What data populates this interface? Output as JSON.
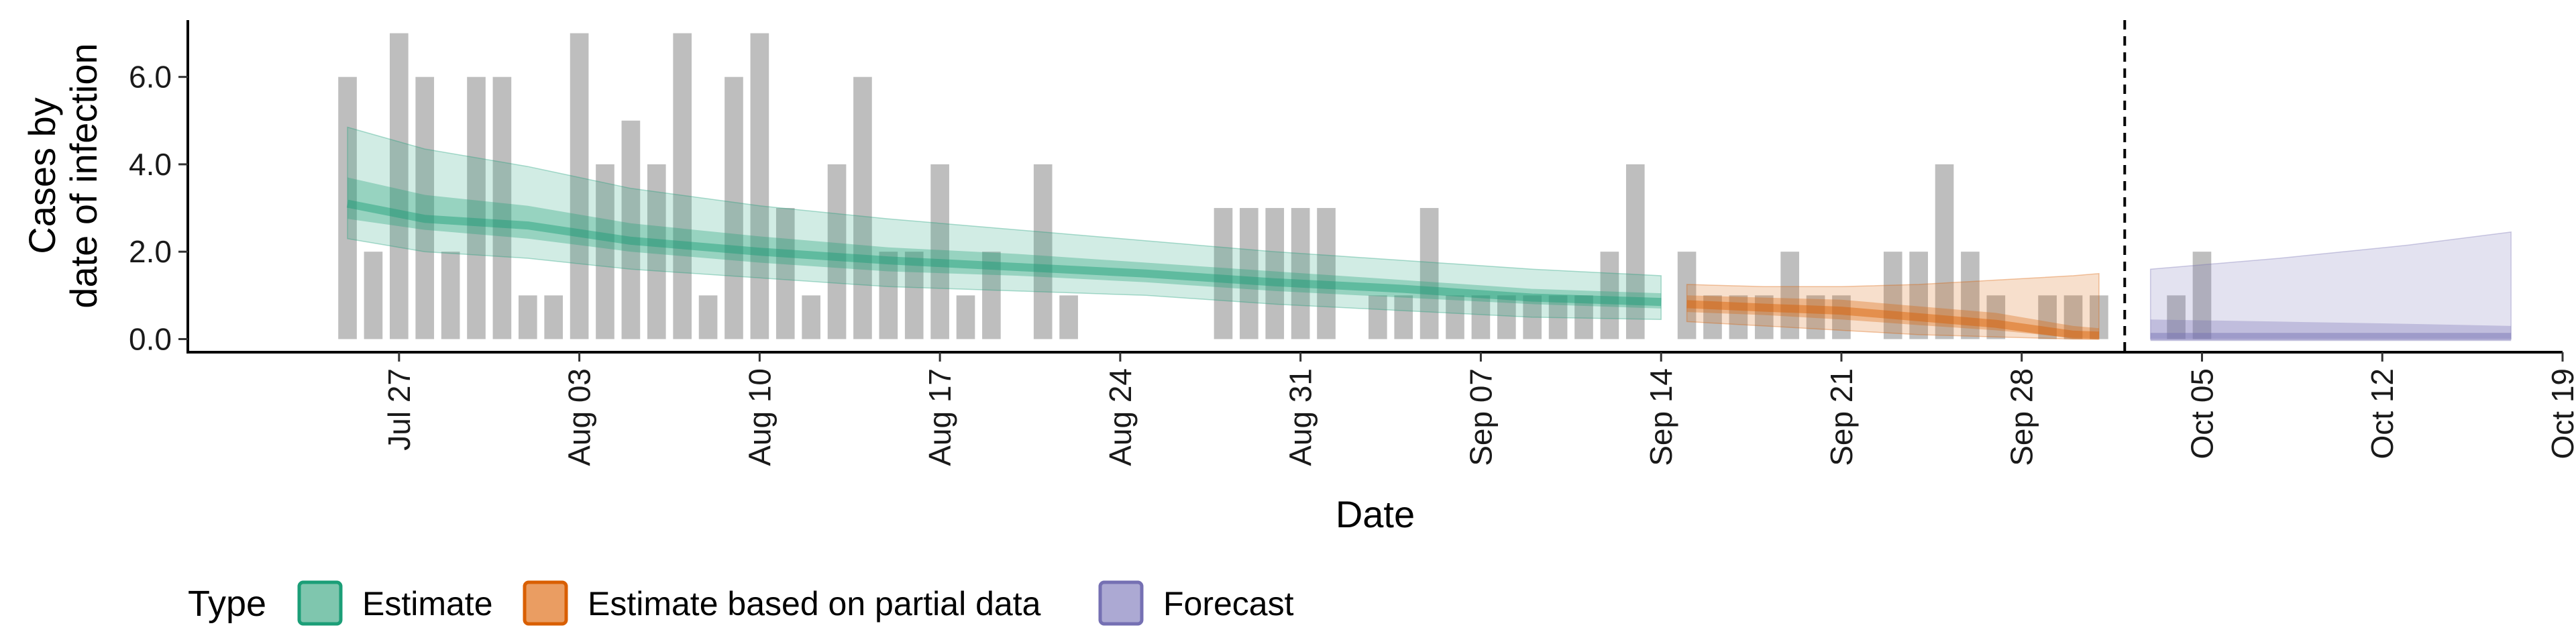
{
  "chart_data": {
    "type": "bar",
    "title": "",
    "xlabel": "Date",
    "ylabel_lines": [
      "Cases by",
      "date of infection"
    ],
    "x_range": [
      "2020-07-19",
      "2020-10-19"
    ],
    "ylim": [
      -0.3,
      7.3
    ],
    "x_ticks": [
      {
        "date": "2020-07-27",
        "label": "Jul 27"
      },
      {
        "date": "2020-08-03",
        "label": "Aug 03"
      },
      {
        "date": "2020-08-10",
        "label": "Aug 10"
      },
      {
        "date": "2020-08-17",
        "label": "Aug 17"
      },
      {
        "date": "2020-08-24",
        "label": "Aug 24"
      },
      {
        "date": "2020-08-31",
        "label": "Aug 31"
      },
      {
        "date": "2020-09-07",
        "label": "Sep 07"
      },
      {
        "date": "2020-09-14",
        "label": "Sep 14"
      },
      {
        "date": "2020-09-21",
        "label": "Sep 21"
      },
      {
        "date": "2020-09-28",
        "label": "Sep 28"
      },
      {
        "date": "2020-10-05",
        "label": "Oct 05"
      },
      {
        "date": "2020-10-12",
        "label": "Oct 12"
      },
      {
        "date": "2020-10-19",
        "label": "Oct 19"
      }
    ],
    "y_ticks": [
      {
        "value": 0,
        "label": "0.0"
      },
      {
        "value": 2,
        "label": "2.0"
      },
      {
        "value": 4,
        "label": "4.0"
      },
      {
        "value": 6,
        "label": "6.0"
      }
    ],
    "reported_cases": {
      "start_date": "2020-07-25",
      "values": [
        6,
        2,
        7,
        6,
        2,
        6,
        6,
        1,
        1,
        7,
        4,
        5,
        4,
        7,
        1,
        6,
        7,
        3,
        1,
        4,
        6,
        2,
        2,
        4,
        1,
        2,
        0,
        4,
        1,
        0,
        0,
        0,
        0,
        0,
        3,
        3,
        3,
        3,
        3,
        0,
        1,
        1,
        3,
        1,
        1,
        1,
        1,
        1,
        1,
        2,
        4,
        0,
        2,
        1,
        1,
        1,
        2,
        1,
        1,
        0,
        2,
        2,
        4,
        2,
        1,
        0,
        1,
        1,
        1,
        0,
        0,
        1,
        2
      ]
    },
    "series": [
      {
        "name": "Estimate",
        "color": "#1B9E77",
        "dates": [
          "2020-07-25",
          "2020-07-28",
          "2020-08-01",
          "2020-08-05",
          "2020-08-10",
          "2020-08-15",
          "2020-08-20",
          "2020-08-25",
          "2020-08-30",
          "2020-09-04",
          "2020-09-09",
          "2020-09-14"
        ],
        "median": [
          3.1,
          2.75,
          2.6,
          2.25,
          2.0,
          1.8,
          1.65,
          1.5,
          1.3,
          1.15,
          0.95,
          0.85
        ],
        "lower_50": [
          2.75,
          2.5,
          2.3,
          2.0,
          1.75,
          1.55,
          1.45,
          1.3,
          1.1,
          0.95,
          0.8,
          0.7
        ],
        "upper_50": [
          3.7,
          3.3,
          3.05,
          2.65,
          2.35,
          2.1,
          1.95,
          1.75,
          1.55,
          1.35,
          1.15,
          1.05
        ],
        "lower_90": [
          2.3,
          2.0,
          1.85,
          1.6,
          1.4,
          1.2,
          1.1,
          1.0,
          0.8,
          0.65,
          0.5,
          0.45
        ],
        "upper_90": [
          4.85,
          4.35,
          3.95,
          3.45,
          3.05,
          2.75,
          2.5,
          2.25,
          2.0,
          1.8,
          1.6,
          1.45
        ]
      },
      {
        "name": "Estimate based on partial data",
        "color": "#D95F02",
        "dates": [
          "2020-09-15",
          "2020-09-18",
          "2020-09-21",
          "2020-09-24",
          "2020-09-27",
          "2020-09-30",
          "2020-10-01"
        ],
        "median": [
          0.8,
          0.72,
          0.65,
          0.5,
          0.35,
          0.1,
          0.08
        ],
        "lower_50": [
          0.62,
          0.55,
          0.45,
          0.32,
          0.2,
          0.03,
          0.02
        ],
        "upper_50": [
          1.0,
          0.95,
          0.9,
          0.75,
          0.6,
          0.3,
          0.25
        ],
        "lower_90": [
          0.4,
          0.3,
          0.2,
          0.1,
          0.05,
          0.0,
          0.0
        ],
        "upper_90": [
          1.25,
          1.2,
          1.2,
          1.25,
          1.35,
          1.45,
          1.5
        ]
      },
      {
        "name": "Forecast",
        "color": "#7570B3",
        "dates": [
          "2020-10-03",
          "2020-10-08",
          "2020-10-13",
          "2020-10-17"
        ],
        "median": [
          0.05,
          0.05,
          0.05,
          0.05
        ],
        "lower_50": [
          0.02,
          0.02,
          0.02,
          0.02
        ],
        "upper_50": [
          0.45,
          0.4,
          0.35,
          0.3
        ],
        "lower_90": [
          0.0,
          0.0,
          0.0,
          0.0
        ],
        "upper_90": [
          1.6,
          1.85,
          2.15,
          2.45
        ]
      }
    ],
    "vline_date": "2020-10-02",
    "legend": {
      "position": "bottom",
      "title": "Type",
      "items": [
        {
          "label": "Estimate",
          "fill": "#7FC6AE",
          "stroke": "#1B9E77"
        },
        {
          "label": "Estimate based on partial data",
          "fill": "#EA9D62",
          "stroke": "#D95F02"
        },
        {
          "label": "Forecast",
          "fill": "#ACA9D3",
          "stroke": "#7570B3"
        }
      ]
    }
  }
}
